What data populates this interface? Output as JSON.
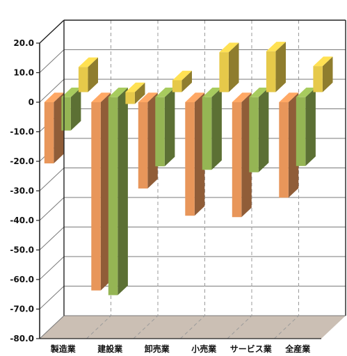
{
  "chart_data": {
    "type": "bar",
    "style": "3d-clustered",
    "categories": [
      "製造業",
      "建設業",
      "卸売業",
      "小売業",
      "サービス業",
      "全産業"
    ],
    "series": [
      {
        "color": "#e8965a",
        "values": [
          -20.7,
          -63.7,
          -29.2,
          -38.4,
          -38.9,
          -32.3
        ]
      },
      {
        "color": "#95b554",
        "values": [
          -11.3,
          -67.0,
          -23.4,
          -24.6,
          -25.4,
          -23.3
        ]
      },
      {
        "color": "#e6c94a",
        "values": [
          8.5,
          -4.0,
          4.0,
          13.5,
          13.8,
          8.8
        ]
      }
    ],
    "ylim": [
      -80,
      20
    ],
    "yticks": [
      "20.0",
      "10.0",
      "0",
      "-10.0",
      "-20.0",
      "-30.0",
      "-40.0",
      "-50.0",
      "-60.0",
      "-70.0",
      "-80.0"
    ],
    "ytick_values": [
      20,
      10,
      0,
      -10,
      -20,
      -30,
      -40,
      -50,
      -60,
      -70,
      -80
    ],
    "grid": true,
    "legend": "none",
    "floor_color": "#cbbfb4"
  }
}
